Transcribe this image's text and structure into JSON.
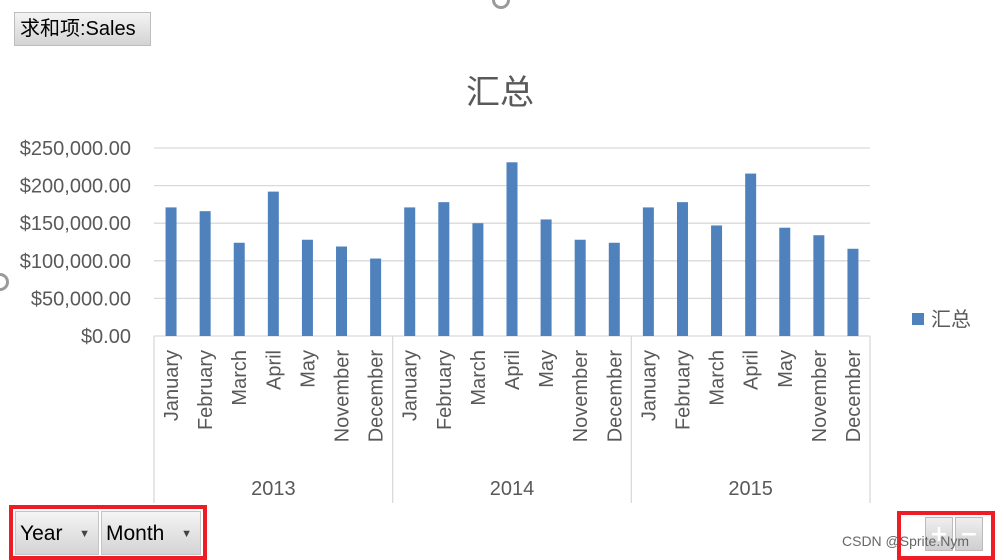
{
  "value_field_button": "求和项:Sales",
  "axis_field_buttons": [
    {
      "label": "Year"
    },
    {
      "label": "Month"
    }
  ],
  "zoom_buttons": {
    "expand": "+",
    "collapse": "−"
  },
  "watermark": "CSDN @Sprite.Nym",
  "colors": {
    "bar": "#4f81bd",
    "grid": "#d9d9d9",
    "highlight_frame": "#ee1c25"
  },
  "chart_data": {
    "type": "bar",
    "title": "汇总",
    "legend": {
      "position": "right",
      "entries": [
        "汇总"
      ]
    },
    "grid": true,
    "ylim": [
      0,
      250000
    ],
    "yticks": [
      "$0.00",
      "$50,000.00",
      "$100,000.00",
      "$150,000.00",
      "$200,000.00",
      "$250,000.00"
    ],
    "groups": [
      {
        "label": "2013",
        "categories": [
          "January",
          "February",
          "March",
          "April",
          "May",
          "November",
          "December"
        ],
        "values": [
          171000,
          166000,
          124000,
          192000,
          128000,
          119000,
          103000
        ]
      },
      {
        "label": "2014",
        "categories": [
          "January",
          "February",
          "March",
          "April",
          "May",
          "November",
          "December"
        ],
        "values": [
          171000,
          178000,
          150000,
          231000,
          155000,
          128000,
          124000
        ]
      },
      {
        "label": "2015",
        "categories": [
          "January",
          "February",
          "March",
          "April",
          "May",
          "November",
          "December"
        ],
        "values": [
          171000,
          178000,
          147000,
          216000,
          144000,
          134000,
          116000
        ]
      }
    ],
    "series": [
      {
        "name": "汇总"
      }
    ]
  }
}
